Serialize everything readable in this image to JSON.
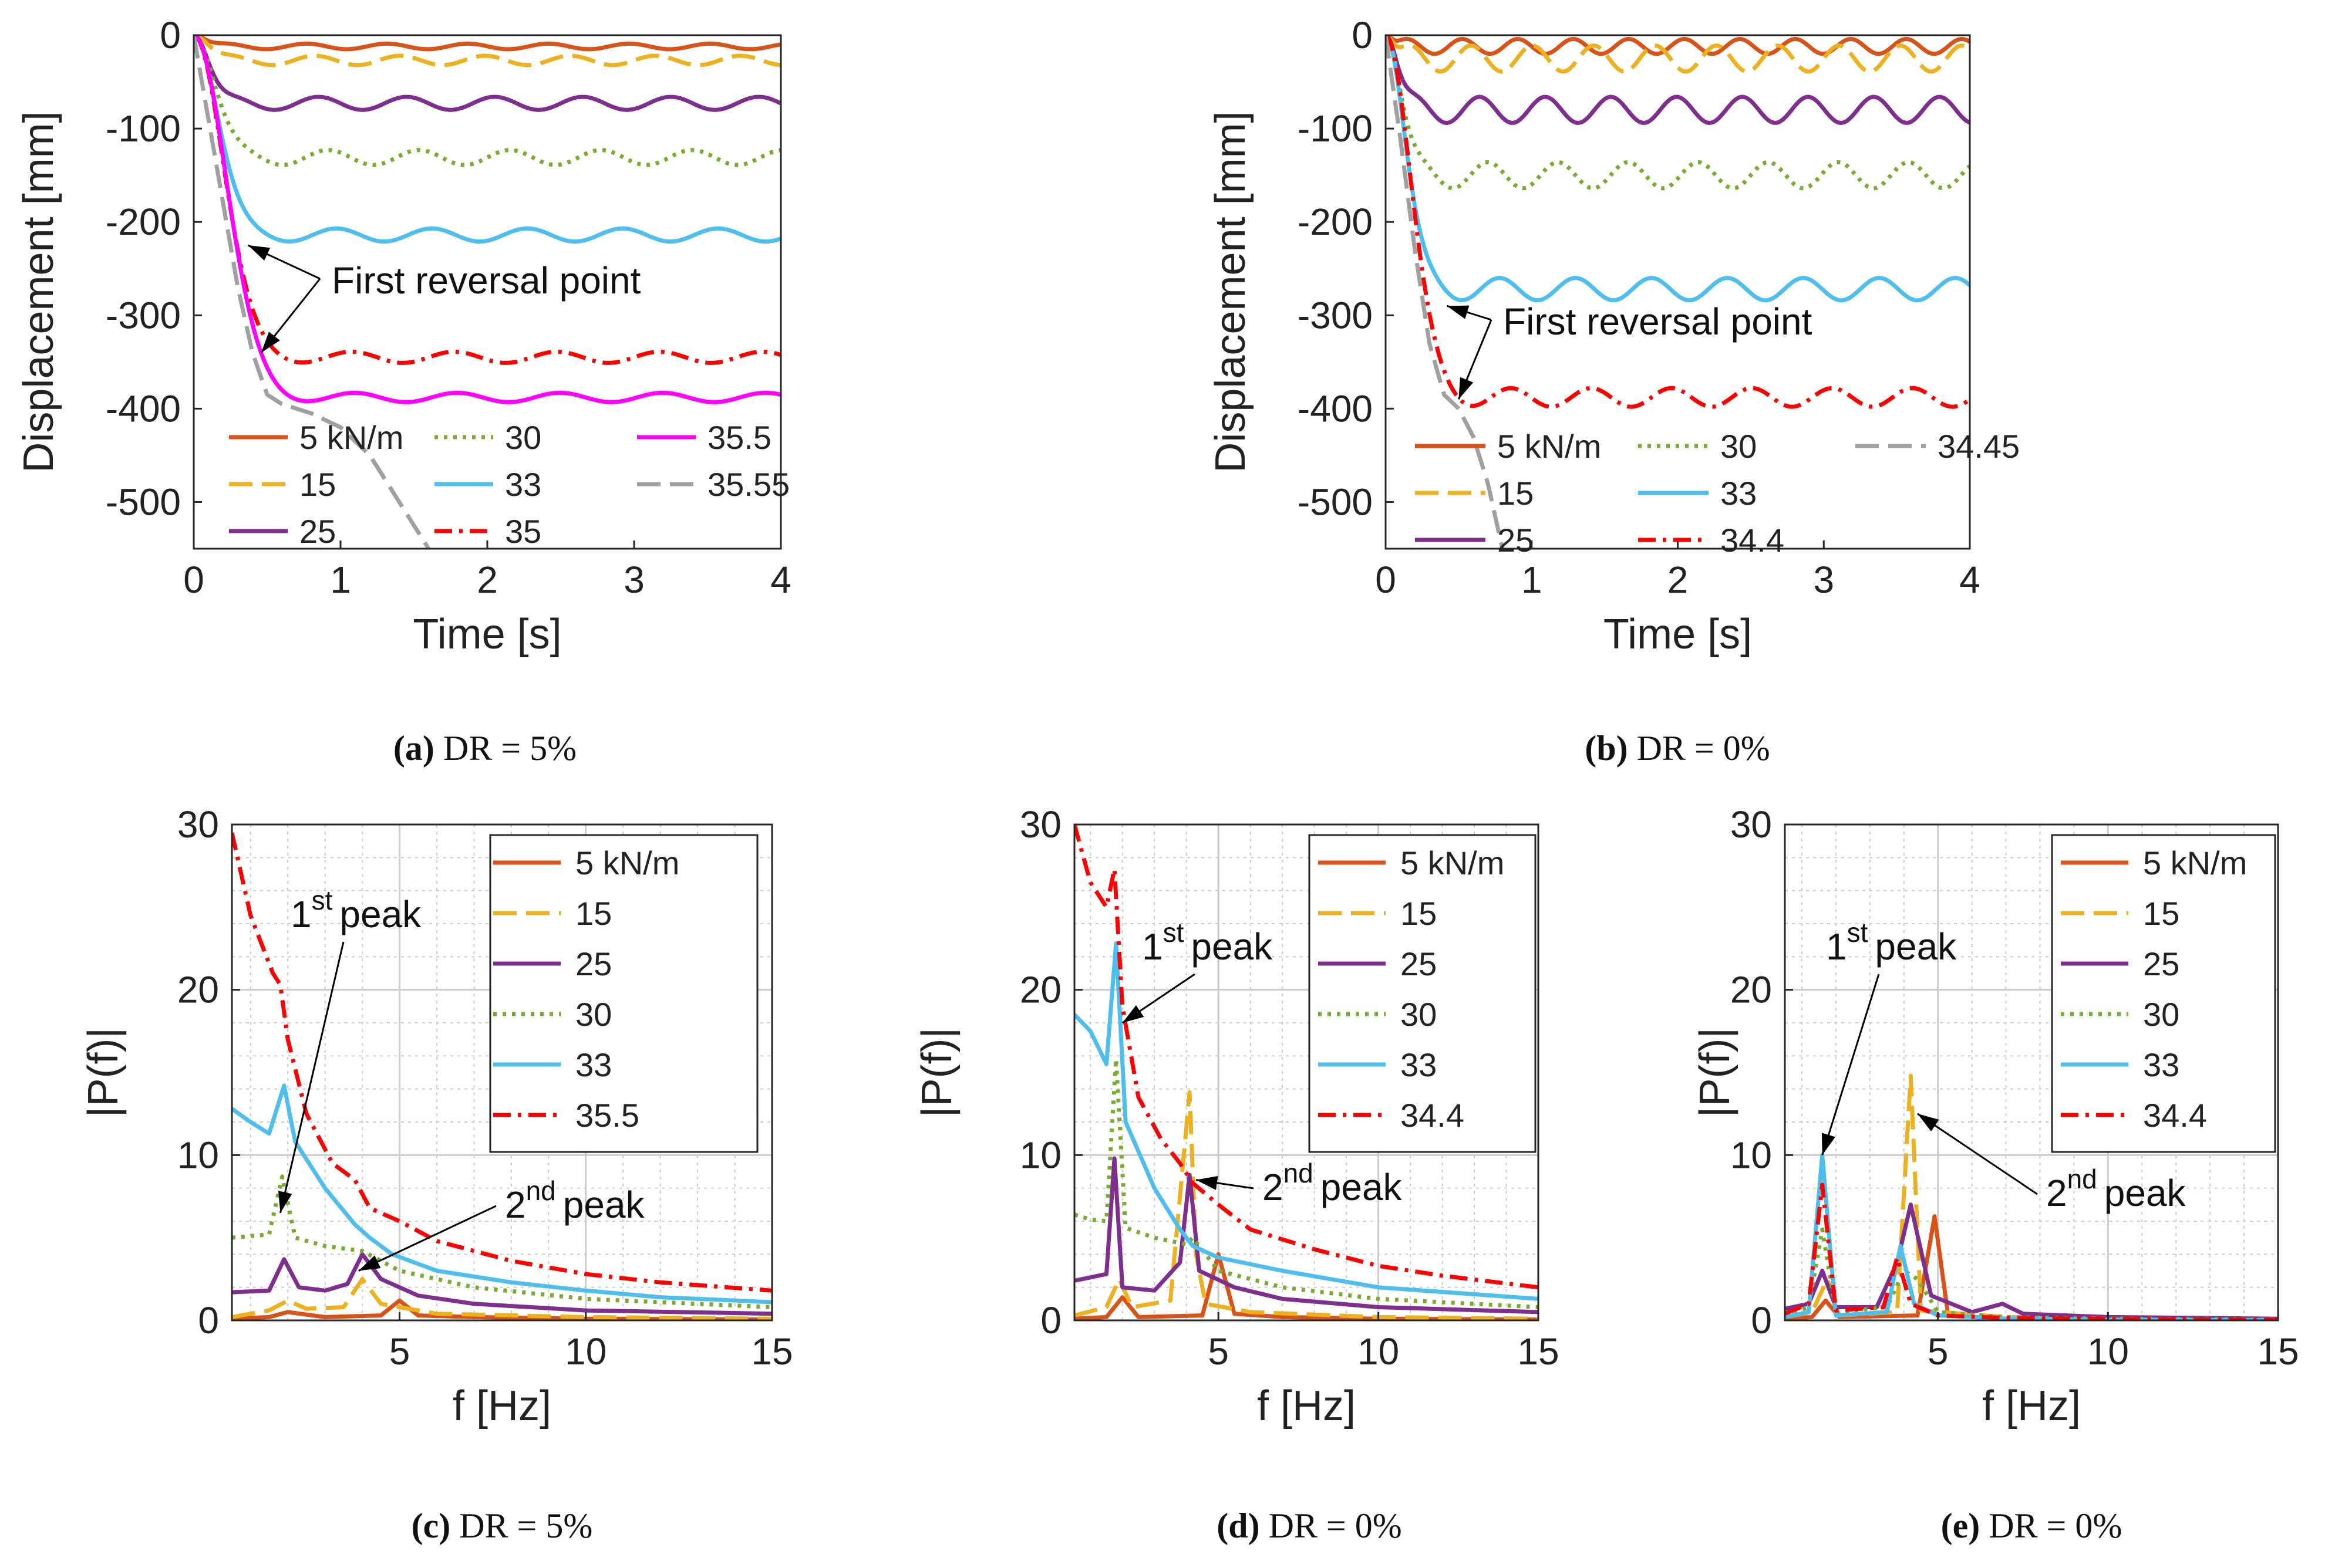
{
  "colors": {
    "c5": "#d95319",
    "c15": "#edb120",
    "c25": "#7e2f8e",
    "c30": "#77ac30",
    "c33": "#4dbeee",
    "cred": "#ff0000",
    "cmag": "#ff00ff",
    "cgray": "#a0a0a0",
    "grid": "#cccccc",
    "axis": "#262626"
  },
  "chart_data": [
    {
      "id": "a",
      "type": "line",
      "caption": {
        "letter": "(a)",
        "text": "DR = 5%"
      },
      "xlabel": "Time [s]",
      "ylabel": "Displacement [mm]",
      "xlim": [
        0,
        4
      ],
      "ylim": [
        -550,
        0
      ],
      "xticks": [
        0,
        1,
        2,
        3,
        4
      ],
      "yticks": [
        0,
        -100,
        -200,
        -300,
        -400,
        -500
      ],
      "grid": false,
      "legend": {
        "placement": "bottom-left",
        "columns": 3,
        "entries": [
          [
            "5 kN/m",
            "15",
            "25"
          ],
          [
            "30",
            "33",
            "35"
          ],
          [
            "35.5",
            "35.55"
          ]
        ]
      },
      "annotations": [
        {
          "text": "First reversal point",
          "targets": [
            [
              0.37,
              -225
            ],
            [
              0.46,
              -340
            ]
          ]
        }
      ],
      "series": [
        {
          "name": "5 kN/m",
          "style": "solid",
          "color": "c5",
          "approx": {
            "final": -12,
            "tau": 0.08,
            "amp": 3,
            "period": 0.55
          }
        },
        {
          "name": "15",
          "style": "dash",
          "color": "c15",
          "approx": {
            "final": -27,
            "tau": 0.1,
            "amp": 5,
            "period": 0.58
          }
        },
        {
          "name": "25",
          "style": "solid",
          "color": "c25",
          "approx": {
            "final": -73,
            "tau": 0.1,
            "amp": 7,
            "period": 0.6
          }
        },
        {
          "name": "30",
          "style": "dot",
          "color": "c30",
          "approx": {
            "final": -131,
            "tau": 0.14,
            "amp": 8,
            "period": 0.62
          }
        },
        {
          "name": "33",
          "style": "solid",
          "color": "c33",
          "approx": {
            "final": -214,
            "tau": 0.16,
            "amp": 7,
            "period": 0.65
          }
        },
        {
          "name": "35",
          "style": "dashdot",
          "color": "cred",
          "approx": {
            "final": -345,
            "tau": 0.2,
            "amp": 6,
            "period": 0.7
          }
        },
        {
          "name": "35.5",
          "style": "solid",
          "color": "cmag",
          "approx": {
            "final": -388,
            "tau": 0.22,
            "amp": 5,
            "period": 0.7
          }
        },
        {
          "name": "35.55",
          "style": "dash",
          "color": "cgray",
          "x": [
            0,
            0.1,
            0.2,
            0.3,
            0.4,
            0.5,
            0.6,
            0.8,
            1.0,
            1.2,
            1.4,
            1.6
          ],
          "y": [
            0,
            -90,
            -180,
            -270,
            -340,
            -385,
            -395,
            -405,
            -420,
            -450,
            -500,
            -550
          ]
        }
      ]
    },
    {
      "id": "b",
      "type": "line",
      "caption": {
        "letter": "(b)",
        "text": "DR = 0%"
      },
      "xlabel": "Time [s]",
      "ylabel": "Displacement [mm]",
      "xlim": [
        0,
        4
      ],
      "ylim": [
        -550,
        0
      ],
      "xticks": [
        0,
        1,
        2,
        3,
        4
      ],
      "yticks": [
        0,
        -100,
        -200,
        -300,
        -400,
        -500
      ],
      "grid": false,
      "legend": {
        "placement": "bottom",
        "columns": 3,
        "entries": [
          [
            "5 kN/m",
            "15",
            "25"
          ],
          [
            "30",
            "33",
            "34.4"
          ],
          [
            "34.45"
          ]
        ]
      },
      "annotations": [
        {
          "text": "First reversal point",
          "targets": [
            [
              0.42,
              -290
            ],
            [
              0.5,
              -390
            ]
          ]
        }
      ],
      "series": [
        {
          "name": "5 kN/m",
          "style": "solid",
          "color": "c5",
          "approx": {
            "final": -12,
            "tau": 0.05,
            "amp": 8,
            "period": 0.38
          }
        },
        {
          "name": "15",
          "style": "dash",
          "color": "c15",
          "approx": {
            "final": -25,
            "tau": 0.06,
            "amp": 14,
            "period": 0.42
          }
        },
        {
          "name": "25",
          "style": "solid",
          "color": "c25",
          "approx": {
            "final": -80,
            "tau": 0.08,
            "amp": 14,
            "period": 0.45
          }
        },
        {
          "name": "30",
          "style": "dot",
          "color": "c30",
          "approx": {
            "final": -150,
            "tau": 0.1,
            "amp": 14,
            "period": 0.48
          }
        },
        {
          "name": "33",
          "style": "solid",
          "color": "c33",
          "approx": {
            "final": -272,
            "tau": 0.13,
            "amp": 12,
            "period": 0.52
          }
        },
        {
          "name": "34.4",
          "style": "dashdot",
          "color": "cred",
          "approx": {
            "final": -388,
            "tau": 0.17,
            "amp": 10,
            "period": 0.55
          }
        },
        {
          "name": "34.45",
          "style": "dash",
          "color": "cgray",
          "x": [
            0,
            0.1,
            0.2,
            0.3,
            0.4,
            0.5,
            0.6,
            0.7,
            0.8
          ],
          "y": [
            0,
            -110,
            -230,
            -330,
            -385,
            -400,
            -430,
            -480,
            -550
          ]
        }
      ]
    },
    {
      "id": "c",
      "type": "line",
      "caption": {
        "letter": "(c)",
        "text": "DR = 5%"
      },
      "xlabel": "f [Hz]",
      "ylabel": "|P(f)|",
      "xlim": [
        0.5,
        15
      ],
      "ylim": [
        0,
        30
      ],
      "xticks": [
        5,
        10,
        15
      ],
      "yticks": [
        0,
        10,
        20,
        30
      ],
      "grid": true,
      "legend": {
        "placement": "top-right",
        "columns": 1,
        "entries": [
          [
            "5 kN/m",
            "15",
            "25",
            "30",
            "33",
            "35.5"
          ]
        ]
      },
      "annotations": [
        {
          "label": "1",
          "sup": "st",
          "rest": "peak",
          "target": [
            1.8,
            6.5
          ]
        },
        {
          "label": "2",
          "sup": "nd",
          "rest": "peak",
          "target": [
            3.9,
            3.0
          ]
        }
      ],
      "series": [
        {
          "name": "5 kN/m",
          "style": "solid",
          "color": "c5",
          "x": [
            0.5,
            1.5,
            2.0,
            3.0,
            4.5,
            5.0,
            5.5,
            7,
            10,
            15
          ],
          "y": [
            0.1,
            0.2,
            0.5,
            0.2,
            0.3,
            1.2,
            0.3,
            0.2,
            0.1,
            0.05
          ]
        },
        {
          "name": "15",
          "style": "dash",
          "color": "c15",
          "x": [
            0.5,
            1.5,
            2.0,
            2.5,
            3.5,
            4.0,
            4.5,
            6,
            10,
            15
          ],
          "y": [
            0.2,
            0.6,
            1.2,
            0.7,
            0.8,
            2.5,
            1.0,
            0.4,
            0.2,
            0.1
          ]
        },
        {
          "name": "25",
          "style": "solid",
          "color": "c25",
          "x": [
            0.5,
            1.5,
            1.9,
            2.3,
            3.0,
            3.6,
            4.0,
            4.5,
            5.5,
            7,
            10,
            15
          ],
          "y": [
            1.7,
            1.8,
            3.7,
            2.0,
            1.8,
            2.2,
            4.0,
            2.5,
            1.5,
            1.0,
            0.6,
            0.4
          ]
        },
        {
          "name": "30",
          "style": "dot",
          "color": "c30",
          "x": [
            0.5,
            1.5,
            1.85,
            2.2,
            3.0,
            4.0,
            5,
            7,
            10,
            15
          ],
          "y": [
            5.0,
            5.2,
            8.7,
            5.0,
            4.5,
            4.2,
            3.0,
            2.0,
            1.3,
            0.8
          ]
        },
        {
          "name": "33",
          "style": "solid",
          "color": "c33",
          "x": [
            0.5,
            1.0,
            1.5,
            1.9,
            2.2,
            3.0,
            3.8,
            4.2,
            4.8,
            6,
            8,
            10,
            12,
            15
          ],
          "y": [
            12.8,
            12.0,
            11.3,
            14.2,
            10.8,
            8.0,
            5.8,
            5.0,
            4.0,
            3.0,
            2.3,
            1.8,
            1.4,
            1.1
          ]
        },
        {
          "name": "35.5",
          "style": "dashdot",
          "color": "cred",
          "x": [
            0.5,
            1.0,
            1.6,
            1.8,
            2.0,
            2.5,
            3.2,
            3.8,
            4.2,
            5,
            6,
            8,
            10,
            12,
            15
          ],
          "y": [
            29.5,
            24.5,
            21.0,
            20.3,
            17.0,
            12.5,
            9.5,
            8.5,
            6.8,
            6.0,
            4.8,
            3.6,
            2.8,
            2.3,
            1.8
          ]
        }
      ]
    },
    {
      "id": "d",
      "type": "line",
      "caption": {
        "letter": "(d)",
        "text": "DR = 0%"
      },
      "xlabel": "f [Hz]",
      "ylabel": "|P(f)|",
      "xlim": [
        0.5,
        15
      ],
      "ylim": [
        0,
        30
      ],
      "xticks": [
        5,
        10,
        15
      ],
      "yticks": [
        0,
        10,
        20,
        30
      ],
      "grid": true,
      "legend": {
        "placement": "top-right",
        "columns": 1,
        "entries": [
          [
            "5 kN/m",
            "15",
            "25",
            "30",
            "33",
            "34.4"
          ]
        ]
      },
      "annotations": [
        {
          "label": "1",
          "sup": "st",
          "rest": "peak",
          "target": [
            2.0,
            18.0
          ]
        },
        {
          "label": "2",
          "sup": "nd",
          "rest": "peak",
          "target": [
            4.3,
            8.5
          ]
        }
      ],
      "series": [
        {
          "name": "5 kN/m",
          "style": "solid",
          "color": "c5",
          "x": [
            0.5,
            1.5,
            2.0,
            2.5,
            4.5,
            5.0,
            5.5,
            7,
            10,
            15
          ],
          "y": [
            0.1,
            0.2,
            1.4,
            0.2,
            0.3,
            4.0,
            0.4,
            0.2,
            0.1,
            0.05
          ]
        },
        {
          "name": "15",
          "style": "dash",
          "color": "c15",
          "x": [
            0.5,
            1.5,
            1.9,
            2.3,
            3.5,
            4.1,
            4.3,
            4.6,
            6,
            10,
            15
          ],
          "y": [
            0.3,
            0.8,
            2.5,
            0.8,
            1.2,
            13.8,
            4.0,
            1.0,
            0.5,
            0.2,
            0.1
          ]
        },
        {
          "name": "25",
          "style": "solid",
          "color": "c25",
          "x": [
            0.5,
            1.5,
            1.75,
            2.0,
            3.0,
            3.8,
            4.1,
            4.4,
            5.5,
            7,
            10,
            15
          ],
          "y": [
            2.4,
            2.8,
            9.8,
            2.0,
            1.8,
            3.5,
            8.8,
            3.0,
            2.0,
            1.3,
            0.8,
            0.5
          ]
        },
        {
          "name": "30",
          "style": "dot",
          "color": "c30",
          "x": [
            0.5,
            1.0,
            1.5,
            1.8,
            2.1,
            3.0,
            4.0,
            4.2,
            5,
            7,
            10,
            15
          ],
          "y": [
            6.4,
            6.1,
            6.0,
            15.8,
            5.6,
            5.0,
            4.6,
            5.0,
            3.0,
            2.0,
            1.3,
            0.8
          ]
        },
        {
          "name": "33",
          "style": "solid",
          "color": "c33",
          "x": [
            0.5,
            1.0,
            1.5,
            1.8,
            2.1,
            3.0,
            3.8,
            4.2,
            5,
            7,
            10,
            15
          ],
          "y": [
            18.5,
            17.5,
            15.5,
            22.8,
            12.0,
            8.0,
            5.5,
            4.5,
            3.8,
            3.0,
            2.0,
            1.3
          ]
        },
        {
          "name": "34.4",
          "style": "dashdot",
          "color": "cred",
          "x": [
            0.5,
            1.0,
            1.5,
            1.75,
            2.0,
            2.5,
            3.2,
            3.8,
            4.2,
            5,
            6,
            8,
            10,
            12,
            15
          ],
          "y": [
            30.0,
            26.5,
            25.0,
            27.3,
            19.0,
            13.5,
            11.0,
            9.5,
            8.3,
            7.0,
            5.5,
            4.3,
            3.3,
            2.7,
            2.0
          ]
        }
      ]
    },
    {
      "id": "e",
      "type": "line",
      "caption": {
        "letter": "(e)",
        "text": "DR = 0%"
      },
      "xlabel": "f [Hz]",
      "ylabel": "|P(f)|",
      "xlim": [
        0.5,
        15
      ],
      "ylim": [
        0,
        30
      ],
      "xticks": [
        5,
        10,
        15
      ],
      "yticks": [
        0,
        10,
        20,
        30
      ],
      "grid": true,
      "legend": {
        "placement": "top-right",
        "columns": 1,
        "entries": [
          [
            "5 kN/m",
            "15",
            "25",
            "30",
            "33",
            "34.4"
          ]
        ]
      },
      "annotations": [
        {
          "label": "1",
          "sup": "st",
          "rest": "peak",
          "target": [
            1.6,
            10.0
          ]
        },
        {
          "label": "2",
          "sup": "nd",
          "rest": "peak",
          "target": [
            4.4,
            12.5
          ]
        }
      ],
      "series": [
        {
          "name": "5 kN/m",
          "style": "solid",
          "color": "c5",
          "x": [
            0.5,
            1.3,
            1.7,
            2.1,
            4.4,
            4.9,
            5.3,
            7,
            10,
            15
          ],
          "y": [
            0.1,
            0.2,
            1.2,
            0.2,
            0.3,
            6.3,
            0.3,
            0.1,
            0.05,
            0.02
          ]
        },
        {
          "name": "15",
          "style": "dash",
          "color": "c15",
          "x": [
            0.5,
            1.3,
            1.75,
            2.1,
            3.8,
            4.2,
            4.5,
            7,
            10,
            15
          ],
          "y": [
            0.2,
            0.5,
            2.5,
            0.3,
            0.5,
            14.8,
            0.6,
            0.2,
            0.1,
            0.05
          ]
        },
        {
          "name": "25",
          "style": "solid",
          "color": "c25",
          "x": [
            0.5,
            1.2,
            1.6,
            2.0,
            3.2,
            3.8,
            4.2,
            4.8,
            6.0,
            6.9,
            7.5,
            10,
            15
          ],
          "y": [
            0.7,
            1.0,
            3.0,
            0.8,
            0.8,
            3.5,
            7.0,
            1.5,
            0.5,
            1.0,
            0.4,
            0.2,
            0.1
          ]
        },
        {
          "name": "30",
          "style": "dot",
          "color": "c30",
          "x": [
            0.5,
            1.2,
            1.6,
            2.0,
            3.5,
            4.0,
            4.4,
            5.0,
            7,
            10,
            15
          ],
          "y": [
            0.3,
            0.8,
            5.5,
            0.5,
            0.8,
            3.0,
            2.5,
            0.5,
            0.2,
            0.1,
            0.05
          ]
        },
        {
          "name": "33",
          "style": "solid",
          "color": "c33",
          "x": [
            0.5,
            1.2,
            1.6,
            2.0,
            3.5,
            3.9,
            4.3,
            5,
            7,
            10,
            15
          ],
          "y": [
            0.2,
            0.5,
            10.0,
            0.3,
            0.5,
            4.5,
            1.0,
            0.3,
            0.1,
            0.05,
            0.02
          ]
        },
        {
          "name": "34.4",
          "style": "dashdot",
          "color": "cred",
          "x": [
            0.5,
            1.2,
            1.6,
            2.0,
            3.4,
            3.8,
            4.2,
            5,
            7,
            10,
            15
          ],
          "y": [
            0.4,
            1.0,
            8.2,
            0.6,
            0.8,
            3.8,
            1.0,
            0.3,
            0.15,
            0.08,
            0.03
          ]
        }
      ]
    }
  ]
}
